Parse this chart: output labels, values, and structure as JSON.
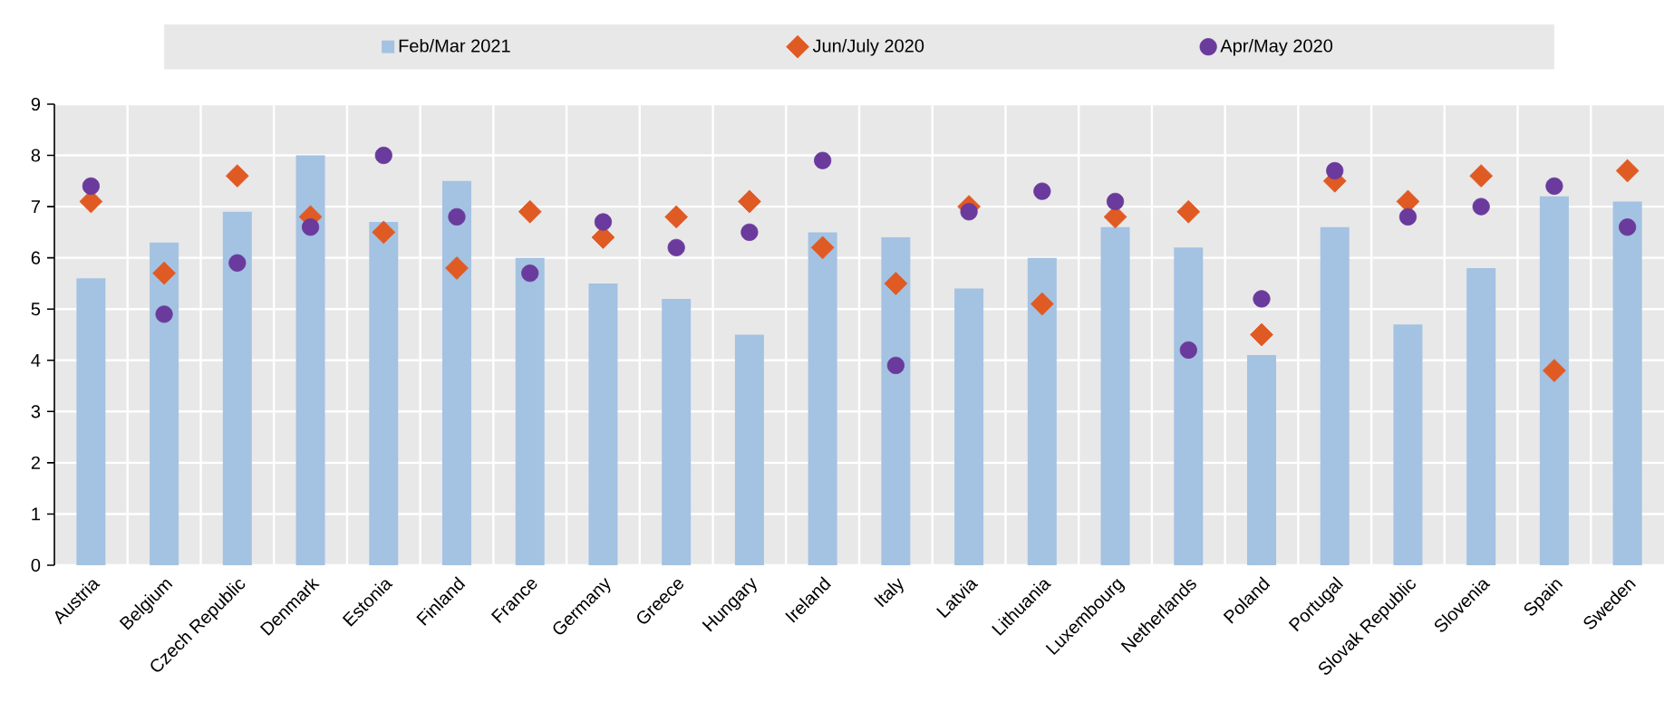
{
  "chart_data": {
    "type": "bar",
    "categories": [
      "Austria",
      "Belgium",
      "Czech Republic",
      "Denmark",
      "Estonia",
      "Finland",
      "France",
      "Germany",
      "Greece",
      "Hungary",
      "Ireland",
      "Italy",
      "Latvia",
      "Lithuania",
      "Luxembourg",
      "Netherlands",
      "Poland",
      "Portugal",
      "Slovak Republic",
      "Slovenia",
      "Spain",
      "Sweden"
    ],
    "series": [
      {
        "name": "Feb/Mar 2021",
        "color": "#a4c2e2",
        "values": [
          5.6,
          6.3,
          6.9,
          8.0,
          6.7,
          7.5,
          6.0,
          5.5,
          5.2,
          4.5,
          6.5,
          6.4,
          5.4,
          6.0,
          6.6,
          6.2,
          4.1,
          6.6,
          4.7,
          5.8,
          7.2,
          7.1
        ]
      },
      {
        "name": "Jun/July 2020",
        "type": "scatter",
        "marker": "diamond",
        "color": "#e05a24",
        "values": [
          7.1,
          5.7,
          7.6,
          6.8,
          6.5,
          5.8,
          6.9,
          6.4,
          6.8,
          7.1,
          6.2,
          5.5,
          7.0,
          5.1,
          6.8,
          6.9,
          4.5,
          7.5,
          7.1,
          7.6,
          3.8,
          7.7
        ]
      },
      {
        "name": "Apr/May 2020",
        "type": "scatter",
        "marker": "circle",
        "color": "#6a3a9c",
        "values": [
          7.4,
          4.9,
          5.9,
          6.6,
          8.0,
          6.8,
          5.7,
          6.7,
          6.2,
          6.5,
          7.9,
          3.9,
          6.9,
          7.3,
          7.1,
          4.2,
          5.2,
          7.7,
          6.8,
          7.0,
          7.4,
          6.6
        ]
      }
    ],
    "ylim": [
      0,
      9
    ],
    "yticks": [
      0,
      1,
      2,
      3,
      4,
      5,
      6,
      7,
      8,
      9
    ],
    "grid": true,
    "legend": "top"
  }
}
